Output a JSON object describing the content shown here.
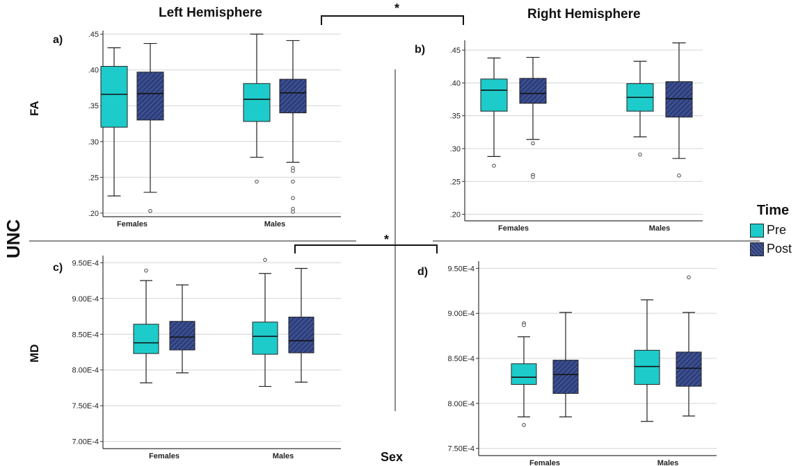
{
  "headers": {
    "left_hemisphere": "Left Hemisphere",
    "right_hemisphere": "Right Hemisphere",
    "row_fa": "FA",
    "row_md": "MD",
    "tract": "UNC",
    "x_title": "Sex",
    "significance_top": "*",
    "significance_mid": "*"
  },
  "legend": {
    "title": "Time",
    "items": [
      {
        "label": "Pre",
        "color": "#1ecbcb"
      },
      {
        "label": "Post",
        "color": "#2e3f7d"
      }
    ]
  },
  "colors": {
    "pre": "#1ecbcb",
    "post": "#2e3f7d",
    "grid": "#d4d4d4",
    "axis": "#333333"
  },
  "chart_data": [
    {
      "type": "box",
      "panel_label": "a)",
      "categories": [
        "Females",
        "Males"
      ],
      "ylim": [
        0.195,
        0.455
      ],
      "yticks": [
        0.2,
        0.25,
        0.3,
        0.35,
        0.4,
        0.45
      ],
      "ytick_labels": [
        ".20",
        ".25",
        ".30",
        ".35",
        ".40",
        ".45"
      ],
      "grid": true,
      "series": [
        {
          "name": "Pre",
          "boxes": [
            {
              "whisker_low": 0.224,
              "q1": 0.32,
              "median": 0.366,
              "q3": 0.405,
              "whisker_high": 0.431,
              "outliers": []
            },
            {
              "whisker_low": 0.278,
              "q1": 0.328,
              "median": 0.359,
              "q3": 0.381,
              "whisker_high": 0.45,
              "outliers": [
                0.244
              ]
            }
          ]
        },
        {
          "name": "Post",
          "boxes": [
            {
              "whisker_low": 0.229,
              "q1": 0.33,
              "median": 0.367,
              "q3": 0.397,
              "whisker_high": 0.437,
              "outliers": [
                0.203
              ]
            },
            {
              "whisker_low": 0.271,
              "q1": 0.34,
              "median": 0.368,
              "q3": 0.387,
              "whisker_high": 0.441,
              "outliers": [
                0.263,
                0.259,
                0.244,
                0.221,
                0.206,
                0.202
              ]
            }
          ]
        }
      ]
    },
    {
      "type": "box",
      "panel_label": "b)",
      "categories": [
        "Females",
        "Males"
      ],
      "ylim": [
        0.19,
        0.465
      ],
      "yticks": [
        0.2,
        0.25,
        0.3,
        0.35,
        0.4,
        0.45
      ],
      "ytick_labels": [
        ".20",
        ".25",
        ".30",
        ".35",
        ".40",
        ".45"
      ],
      "grid": true,
      "series": [
        {
          "name": "Pre",
          "boxes": [
            {
              "whisker_low": 0.288,
              "q1": 0.357,
              "median": 0.389,
              "q3": 0.406,
              "whisker_high": 0.438,
              "outliers": [
                0.274
              ]
            },
            {
              "whisker_low": 0.318,
              "q1": 0.357,
              "median": 0.378,
              "q3": 0.399,
              "whisker_high": 0.433,
              "outliers": [
                0.291
              ]
            }
          ]
        },
        {
          "name": "Post",
          "boxes": [
            {
              "whisker_low": 0.314,
              "q1": 0.369,
              "median": 0.384,
              "q3": 0.407,
              "whisker_high": 0.439,
              "outliers": [
                0.308,
                0.26,
                0.257
              ]
            },
            {
              "whisker_low": 0.285,
              "q1": 0.348,
              "median": 0.376,
              "q3": 0.402,
              "whisker_high": 0.461,
              "outliers": [
                0.259
              ]
            }
          ]
        }
      ]
    },
    {
      "type": "box",
      "panel_label": "c)",
      "categories": [
        "Females",
        "Males"
      ],
      "ylim": [
        0.00069,
        0.00096
      ],
      "yticks": [
        0.0007,
        0.00075,
        0.0008,
        0.00085,
        0.0009,
        0.00095
      ],
      "ytick_labels": [
        "7.00E-4",
        "7.50E-4",
        "8.00E-4",
        "8.50E-4",
        "9.00E-4",
        "9.50E-4"
      ],
      "grid": true,
      "series": [
        {
          "name": "Pre",
          "boxes": [
            {
              "whisker_low": 0.000782,
              "q1": 0.000823,
              "median": 0.000838,
              "q3": 0.000864,
              "whisker_high": 0.000925,
              "outliers": [
                0.000939
              ]
            },
            {
              "whisker_low": 0.000777,
              "q1": 0.000822,
              "median": 0.000847,
              "q3": 0.000867,
              "whisker_high": 0.000935,
              "outliers": [
                0.000954
              ]
            }
          ]
        },
        {
          "name": "Post",
          "boxes": [
            {
              "whisker_low": 0.000796,
              "q1": 0.000828,
              "median": 0.000846,
              "q3": 0.000868,
              "whisker_high": 0.000919,
              "outliers": []
            },
            {
              "whisker_low": 0.000783,
              "q1": 0.000824,
              "median": 0.000841,
              "q3": 0.000874,
              "whisker_high": 0.000942,
              "outliers": []
            }
          ]
        }
      ]
    },
    {
      "type": "box",
      "panel_label": "d)",
      "categories": [
        "Females",
        "Males"
      ],
      "ylim": [
        0.000742,
        0.000958
      ],
      "yticks": [
        0.00075,
        0.0008,
        0.00085,
        0.0009,
        0.00095
      ],
      "ytick_labels": [
        "7.50E-4",
        "8.00E-4",
        "8.50E-4",
        "9.00E-4",
        "9.50E-4"
      ],
      "grid": true,
      "series": [
        {
          "name": "Pre",
          "boxes": [
            {
              "whisker_low": 0.000785,
              "q1": 0.000821,
              "median": 0.000829,
              "q3": 0.000844,
              "whisker_high": 0.000874,
              "outliers": [
                0.000889,
                0.000887,
                0.000776
              ]
            },
            {
              "whisker_low": 0.00078,
              "q1": 0.000821,
              "median": 0.000841,
              "q3": 0.000859,
              "whisker_high": 0.000915,
              "outliers": []
            }
          ]
        },
        {
          "name": "Post",
          "boxes": [
            {
              "whisker_low": 0.000785,
              "q1": 0.000811,
              "median": 0.000832,
              "q3": 0.000848,
              "whisker_high": 0.000901,
              "outliers": []
            },
            {
              "whisker_low": 0.000786,
              "q1": 0.000819,
              "median": 0.000839,
              "q3": 0.000857,
              "whisker_high": 0.000901,
              "outliers": [
                0.00094
              ]
            }
          ]
        }
      ]
    }
  ]
}
